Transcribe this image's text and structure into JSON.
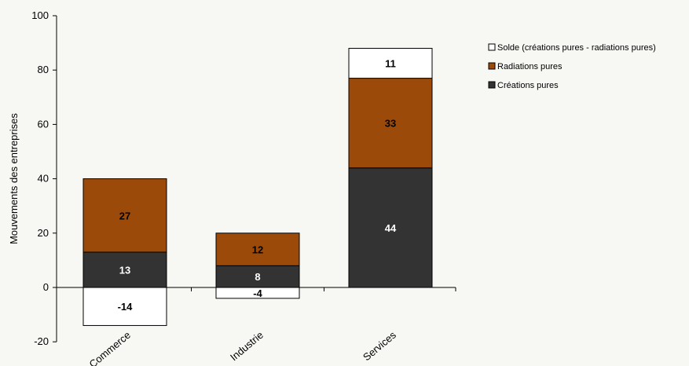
{
  "chart_data": {
    "type": "bar",
    "stacked": true,
    "categories": [
      "Commerce",
      "Industrie",
      "Services"
    ],
    "series": [
      {
        "name": "Créations pures",
        "values": [
          13,
          8,
          44
        ],
        "color": "#333333",
        "label_color": "#ffffff"
      },
      {
        "name": "Radiations pures",
        "values": [
          27,
          12,
          33
        ],
        "color": "#9c4a0a",
        "label_color": "#000000"
      },
      {
        "name": "Solde (créations pures - radiations pures)",
        "values": [
          -14,
          -4,
          11
        ],
        "color": "#ffffff",
        "label_color": "#000000"
      }
    ],
    "ylabel": "Mouvements des entreprises",
    "ylim": [
      -20,
      100
    ],
    "yticks": [
      -20,
      0,
      20,
      40,
      60,
      80,
      100
    ],
    "legend_position": "top-right",
    "legend_order": [
      2,
      1,
      0
    ],
    "grid": false
  }
}
